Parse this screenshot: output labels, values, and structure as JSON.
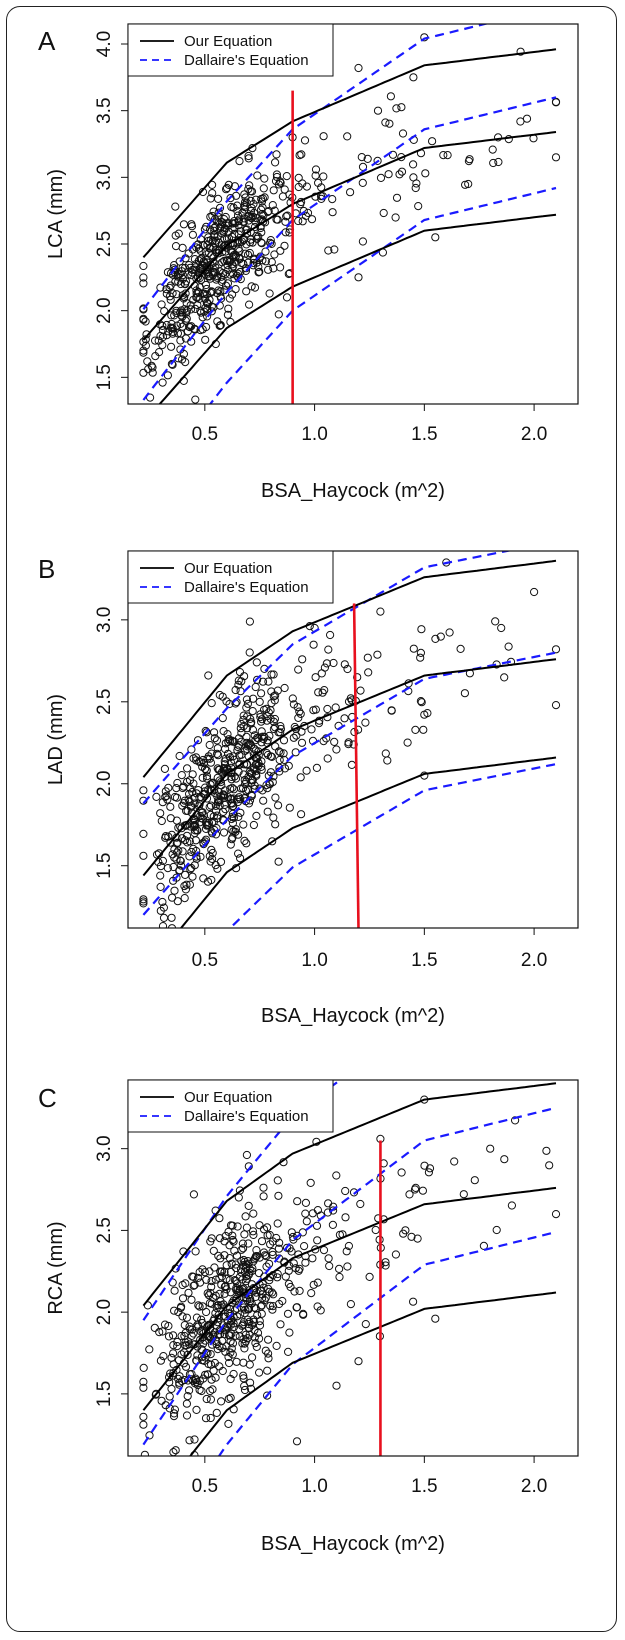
{
  "chart_data": [
    {
      "panel": "A",
      "type": "scatter",
      "xlabel": "BSA_Haycock (m^2)",
      "ylabel": "LCA (mm)",
      "xlim": [
        0.15,
        2.2
      ],
      "ylim": [
        1.3,
        4.15
      ],
      "xticks": [
        0.5,
        1.0,
        1.5,
        2.0
      ],
      "yticks": [
        1.5,
        2.0,
        2.5,
        3.0,
        3.5,
        4.0
      ],
      "legend": {
        "placement": "top-left",
        "entries": [
          {
            "label": "Our Equation",
            "style": "solid",
            "color": "#000000"
          },
          {
            "label": "Dallaire's Equation",
            "style": "dashed",
            "color": "#1a1aff"
          }
        ]
      },
      "our_equation": {
        "mean": [
          1.78,
          2.49,
          2.8,
          3.22,
          3.34
        ],
        "sd": 0.31
      },
      "dallaire": {
        "mean": [
          1.33,
          2.14,
          2.68,
          3.36,
          3.6
        ],
        "sd": 0.34
      },
      "vline": {
        "x": 0.9,
        "y_top": 3.65,
        "color": "#e8101e"
      },
      "scatter": {
        "n": 600,
        "center": [
          0.58,
          2.3
        ],
        "highlights": [
          [
            1.5,
            4.05
          ],
          [
            1.2,
            3.82
          ],
          [
            1.45,
            3.75
          ],
          [
            2.1,
            3.15
          ],
          [
            1.2,
            2.25
          ],
          [
            0.55,
            1.75
          ],
          [
            0.35,
            1.6
          ],
          [
            1.7,
            2.95
          ],
          [
            1.55,
            2.55
          ],
          [
            0.9,
            3.3
          ]
        ]
      }
    },
    {
      "panel": "B",
      "type": "scatter",
      "xlabel": "BSA_Haycock (m^2)",
      "ylabel": "LAD (mm)",
      "xlim": [
        0.15,
        2.2
      ],
      "ylim": [
        1.12,
        3.42
      ],
      "xticks": [
        0.5,
        1.0,
        1.5,
        2.0
      ],
      "yticks": [
        1.5,
        2.0,
        2.5,
        3.0
      ],
      "legend": {
        "placement": "top-left",
        "entries": [
          {
            "label": "Our Equation",
            "style": "solid",
            "color": "#000000"
          },
          {
            "label": "Dallaire's Equation",
            "style": "dashed",
            "color": "#1a1aff"
          }
        ]
      },
      "our_equation": {
        "mean": [
          1.44,
          2.06,
          2.33,
          2.66,
          2.76
        ],
        "sd": 0.3
      },
      "dallaire": {
        "mean": [
          1.2,
          1.78,
          2.17,
          2.64,
          2.8
        ],
        "sd": 0.34
      },
      "vline": {
        "x_bottom": 1.2,
        "x_top": 1.18,
        "y_top": 3.1,
        "color": "#e8101e"
      },
      "scatter": {
        "n": 600,
        "center": [
          0.6,
          1.95
        ],
        "highlights": [
          [
            1.6,
            3.35
          ],
          [
            1.0,
            2.95
          ],
          [
            1.3,
            3.05
          ],
          [
            2.0,
            3.17
          ],
          [
            2.1,
            2.82
          ],
          [
            2.1,
            2.48
          ],
          [
            0.32,
            1.92
          ],
          [
            1.5,
            2.05
          ],
          [
            1.85,
            2.95
          ],
          [
            1.15,
            2.7
          ]
        ]
      }
    },
    {
      "panel": "C",
      "type": "scatter",
      "xlabel": "BSA_Haycock (m^2)",
      "ylabel": "RCA (mm)",
      "xlim": [
        0.15,
        2.2
      ],
      "ylim": [
        1.12,
        3.42
      ],
      "xticks": [
        0.5,
        1.0,
        1.5,
        2.0
      ],
      "yticks": [
        1.5,
        2.0,
        2.5,
        3.0
      ],
      "legend": {
        "placement": "top-left",
        "entries": [
          {
            "label": "Our Equation",
            "style": "solid",
            "color": "#000000"
          },
          {
            "label": "Dallaire's Equation",
            "style": "dashed",
            "color": "#1a1aff"
          }
        ]
      },
      "our_equation": {
        "mean": [
          1.4,
          2.04,
          2.33,
          2.66,
          2.76
        ],
        "sd": 0.32
      },
      "dallaire": {
        "mean": [
          1.19,
          1.95,
          2.44,
          3.05,
          3.25
        ],
        "sd": 0.38
      },
      "vline": {
        "x": 1.3,
        "y_top": 3.05,
        "color": "#e8101e"
      },
      "scatter": {
        "n": 600,
        "center": [
          0.6,
          1.95
        ],
        "highlights": [
          [
            1.5,
            3.3
          ],
          [
            1.3,
            3.06
          ],
          [
            0.45,
            2.72
          ],
          [
            2.1,
            2.6
          ],
          [
            0.92,
            1.21
          ],
          [
            1.55,
            1.96
          ],
          [
            1.1,
            1.55
          ],
          [
            1.8,
            3.0
          ],
          [
            1.2,
            1.7
          ],
          [
            0.7,
            2.65
          ]
        ]
      }
    }
  ],
  "panels": [
    {
      "letter": "A"
    },
    {
      "letter": "B"
    },
    {
      "letter": "C"
    }
  ]
}
